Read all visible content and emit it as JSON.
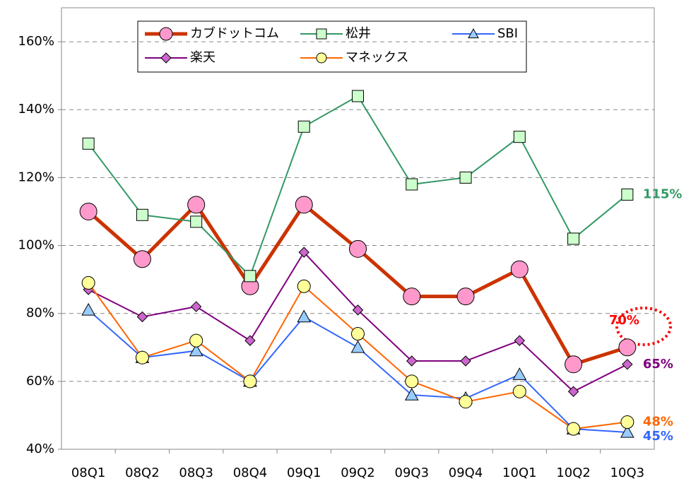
{
  "chart_data": {
    "type": "line",
    "categories": [
      "08Q1",
      "08Q2",
      "08Q3",
      "08Q4",
      "09Q1",
      "09Q2",
      "09Q3",
      "09Q4",
      "10Q1",
      "10Q2",
      "10Q3"
    ],
    "ylim": [
      40,
      170
    ],
    "yticks": [
      {
        "value": 40,
        "label": "40%"
      },
      {
        "value": 60,
        "label": "60%"
      },
      {
        "value": 80,
        "label": "80%"
      },
      {
        "value": 100,
        "label": "100%"
      },
      {
        "value": 120,
        "label": "120%"
      },
      {
        "value": 140,
        "label": "140%"
      },
      {
        "value": 160,
        "label": "160%"
      }
    ],
    "grid": true,
    "series": [
      {
        "name": "カブドットコム",
        "color": "#cc3300",
        "marker": "circle",
        "marker_fill": "#ff99cc",
        "label_color": "#ff0000",
        "width": 5,
        "values": [
          110,
          96,
          112,
          88,
          112,
          99,
          85,
          85,
          93,
          65,
          70
        ],
        "value_labels": [
          null,
          null,
          null,
          null,
          null,
          null,
          null,
          null,
          null,
          null,
          "70%"
        ]
      },
      {
        "name": "松井",
        "color": "#339966",
        "marker": "square",
        "marker_fill": "#ccffcc",
        "label_color": "#339966",
        "width": 2,
        "values": [
          130,
          109,
          107,
          91,
          135,
          144,
          118,
          120,
          132,
          102,
          115
        ],
        "value_labels": [
          null,
          null,
          null,
          null,
          null,
          null,
          null,
          null,
          null,
          null,
          "115%"
        ]
      },
      {
        "name": "SBI",
        "color": "#3366ff",
        "marker": "triangle",
        "marker_fill": "#99ccff",
        "label_color": "#3366ff",
        "width": 2,
        "values": [
          81,
          67,
          69,
          60,
          79,
          70,
          56,
          55,
          62,
          46,
          45
        ],
        "value_labels": [
          null,
          null,
          null,
          null,
          null,
          null,
          null,
          null,
          null,
          null,
          "45%"
        ]
      },
      {
        "name": "楽天",
        "color": "#800080",
        "marker": "diamond",
        "marker_fill": "#cc66cc",
        "label_color": "#800080",
        "width": 2,
        "values": [
          87,
          79,
          82,
          72,
          98,
          81,
          66,
          66,
          72,
          57,
          65
        ],
        "value_labels": [
          null,
          null,
          null,
          null,
          null,
          null,
          null,
          null,
          null,
          null,
          "65%"
        ]
      },
      {
        "name": "マネックス",
        "color": "#ff6600",
        "marker": "circle",
        "marker_fill": "#ffff99",
        "label_color": "#ff6600",
        "width": 2,
        "values": [
          89,
          67,
          72,
          60,
          88,
          74,
          60,
          54,
          57,
          46,
          48
        ],
        "value_labels": [
          null,
          null,
          null,
          null,
          null,
          null,
          null,
          null,
          null,
          null,
          "48%"
        ]
      }
    ]
  }
}
